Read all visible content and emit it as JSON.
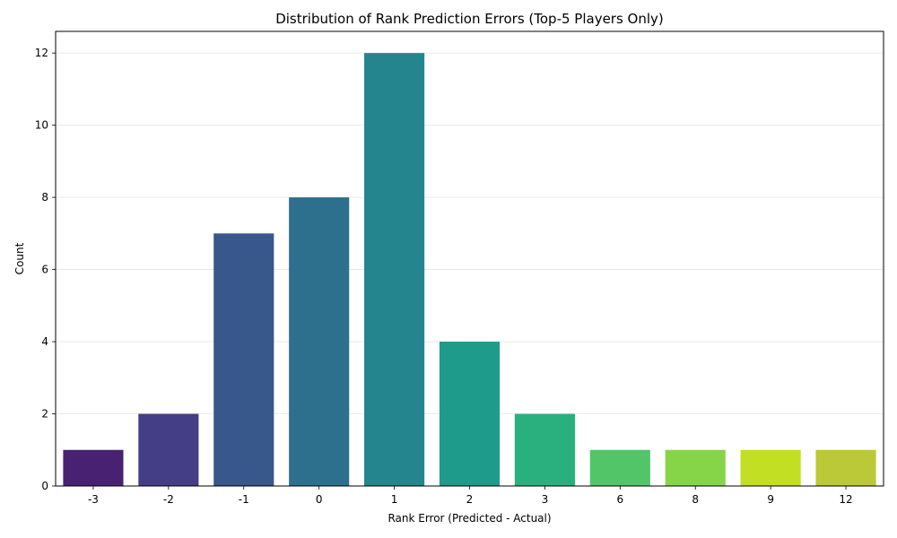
{
  "chart_data": {
    "type": "bar",
    "title": "Distribution of Rank Prediction Errors (Top-5 Players Only)",
    "xlabel": "Rank Error (Predicted - Actual)",
    "ylabel": "Count",
    "categories": [
      "-3",
      "-2",
      "-1",
      "0",
      "1",
      "2",
      "3",
      "6",
      "8",
      "9",
      "12"
    ],
    "values": [
      1,
      2,
      7,
      8,
      12,
      4,
      2,
      1,
      1,
      1,
      1
    ],
    "colors": [
      "#482173",
      "#433e85",
      "#38588c",
      "#2d708e",
      "#25858e",
      "#1e9b8a",
      "#2ab07f",
      "#52c569",
      "#86d549",
      "#c2df23",
      "#bbc837"
    ],
    "ylim": [
      0,
      12.6
    ],
    "yticks": [
      0,
      2,
      4,
      6,
      8,
      10,
      12
    ],
    "grid": "y",
    "palette": "viridis"
  }
}
